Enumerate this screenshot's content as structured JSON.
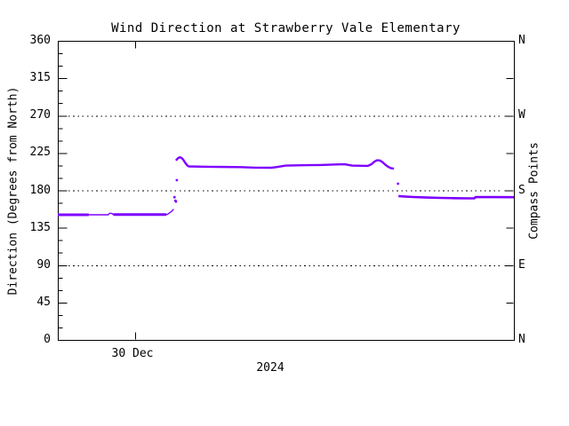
{
  "chart_data": {
    "type": "line",
    "title": "Wind Direction at Strawberry Vale Elementary",
    "ylabel_left": "Direction (Degrees from North)",
    "ylabel_right": "Compass Points",
    "xlabel": "2024",
    "x_tick": {
      "label": "30 Dec",
      "t": 0.17
    },
    "ylim": [
      0,
      360
    ],
    "y_major_step": 45,
    "y_minor_step": 15,
    "y_ticks": [
      0,
      45,
      90,
      135,
      180,
      225,
      270,
      315,
      360
    ],
    "compass_ticks": [
      {
        "deg": 360,
        "label": "N"
      },
      {
        "deg": 270,
        "label": "W"
      },
      {
        "deg": 180,
        "label": "S"
      },
      {
        "deg": 90,
        "label": "E"
      },
      {
        "deg": 0,
        "label": "N"
      }
    ],
    "right_unlabeled_ticks": [
      45,
      135,
      225,
      315
    ],
    "gridlines_deg": [
      90,
      180,
      270
    ],
    "grid_style": "dotted",
    "line_color": "#7F00FF",
    "axis_color": "#000000",
    "background_color": "#ffffff",
    "legend": "none",
    "series": [
      {
        "name": "wind-direction-early-thick",
        "width": 3,
        "points": [
          [
            0.0,
            150.6
          ],
          [
            0.068,
            150.6
          ]
        ]
      },
      {
        "name": "wind-direction-early",
        "width": 1.4,
        "points": [
          [
            0.068,
            150.6
          ],
          [
            0.111,
            150.6
          ],
          [
            0.113,
            152.3
          ],
          [
            0.119,
            152.3
          ],
          [
            0.121,
            150.9
          ],
          [
            0.24,
            150.9
          ],
          [
            0.244,
            152.5
          ],
          [
            0.25,
            155.0
          ],
          [
            0.254,
            157.5
          ]
        ]
      },
      {
        "name": "wind-direction-early-thick2",
        "width": 3,
        "points": [
          [
            0.122,
            150.9
          ],
          [
            0.238,
            150.9
          ]
        ]
      },
      {
        "name": "wind-direction-mid",
        "width": 2.4,
        "points": [
          [
            0.259,
            216.0
          ],
          [
            0.263,
            218.5
          ],
          [
            0.267,
            219.8
          ],
          [
            0.271,
            219.2
          ],
          [
            0.275,
            217.0
          ],
          [
            0.279,
            213.5
          ],
          [
            0.283,
            210.5
          ],
          [
            0.287,
            208.8
          ],
          [
            0.33,
            208.4
          ],
          [
            0.4,
            208.0
          ],
          [
            0.434,
            207.4
          ],
          [
            0.468,
            207.2
          ],
          [
            0.479,
            208.0
          ],
          [
            0.5,
            209.8
          ],
          [
            0.55,
            210.3
          ],
          [
            0.576,
            210.6
          ],
          [
            0.61,
            211.2
          ],
          [
            0.629,
            211.4
          ],
          [
            0.645,
            209.8
          ],
          [
            0.68,
            209.5
          ],
          [
            0.688,
            211.5
          ],
          [
            0.694,
            214.5
          ],
          [
            0.7,
            216.2
          ],
          [
            0.706,
            216.0
          ],
          [
            0.712,
            214.0
          ],
          [
            0.718,
            211.0
          ],
          [
            0.724,
            208.5
          ],
          [
            0.73,
            206.8
          ],
          [
            0.737,
            206.2
          ]
        ]
      },
      {
        "name": "wind-direction-late",
        "width": 2.6,
        "points": [
          [
            0.747,
            173.2
          ],
          [
            0.76,
            172.6
          ],
          [
            0.78,
            172.0
          ],
          [
            0.81,
            171.3
          ],
          [
            0.84,
            170.9
          ],
          [
            0.87,
            170.6
          ],
          [
            0.9,
            170.4
          ],
          [
            0.913,
            170.4
          ],
          [
            0.916,
            171.9
          ],
          [
            0.95,
            171.9
          ],
          [
            1.0,
            171.8
          ]
        ]
      }
    ],
    "scatter_points": [
      [
        0.256,
        171.8
      ],
      [
        0.258,
        167.5
      ],
      [
        0.259,
        166.5
      ],
      [
        0.261,
        192.3
      ],
      [
        0.746,
        188.0
      ]
    ]
  }
}
